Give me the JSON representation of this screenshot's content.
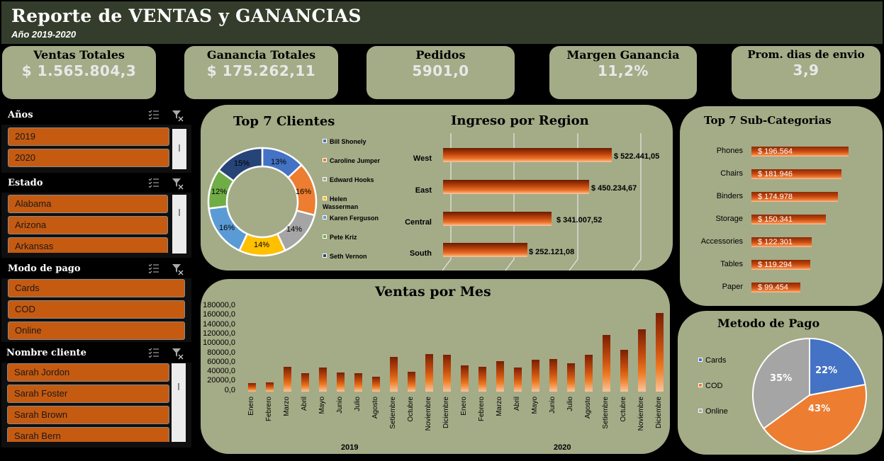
{
  "header": {
    "title": "Reporte de VENTAS y GANANCIAS",
    "subtitle": "Año 2019-2020"
  },
  "kpis": [
    {
      "label": "Ventas Totales",
      "value": "$ 1.565.804,3"
    },
    {
      "label": "Ganancia Totales",
      "value": "$ 175.262,11"
    },
    {
      "label": "Pedidos",
      "value": "5901,0"
    },
    {
      "label": "Margen Ganancia",
      "value": "11,2%"
    },
    {
      "label": "Prom. dias de envio",
      "value": "3,9"
    }
  ],
  "slicers": [
    {
      "title": "Años",
      "items": [
        "2019",
        "2020"
      ]
    },
    {
      "title": "Estado",
      "items": [
        "Alabama",
        "Arizona",
        "Arkansas"
      ]
    },
    {
      "title": "Modo de pago",
      "items": [
        "Cards",
        "COD",
        "Online"
      ]
    },
    {
      "title": "Nombre cliente",
      "items": [
        "Sarah Jordon",
        "Sarah Foster",
        "Sarah Brown",
        "Sarah Bern"
      ]
    }
  ],
  "colors": {
    "background": "#000000",
    "header": "#343d2b",
    "panel": "#a4ab87",
    "slicer_item": "#c55a11",
    "blue": "#4472c4",
    "orange": "#ed7d31",
    "gray": "#a5a5a5",
    "yellow": "#ffc000",
    "light_blue": "#5b9bd5",
    "green": "#70ad47",
    "dark_blue": "#264478"
  },
  "chart_data": [
    {
      "type": "pie",
      "subtype": "donut",
      "title": "Top 7 Clientes",
      "categories": [
        "Bill Shonely",
        "Caroline Jumper",
        "Edward Hooks",
        "Helen Wasserman",
        "Karen Ferguson",
        "Pete Kriz",
        "Seth Vernon"
      ],
      "values": [
        13,
        16,
        14,
        14,
        16,
        12,
        15
      ],
      "labels": [
        "13%",
        "16%",
        "14%",
        "14%",
        "16%",
        "12%",
        "15%"
      ],
      "legend_position": "right"
    },
    {
      "type": "bar",
      "orientation": "horizontal",
      "title": "Ingreso por Region",
      "categories": [
        "West",
        "East",
        "Central",
        "South"
      ],
      "values": [
        522441.05,
        450234.67,
        341007.52,
        252121.08
      ],
      "labels": [
        "$ 522.441,05",
        "$ 450.234,67",
        "$ 341.007,52",
        "$ 252.121,08"
      ],
      "grid": true
    },
    {
      "type": "bar",
      "orientation": "horizontal",
      "title": "Top 7 Sub-Categorias",
      "categories": [
        "Phones",
        "Chairs",
        "Binders",
        "Storage",
        "Accessories",
        "Tables",
        "Paper"
      ],
      "values": [
        196564,
        181946,
        174978,
        150341,
        122301,
        119294,
        99454
      ],
      "labels": [
        "$ 196.564",
        "$ 181.946",
        "$ 174.978",
        "$ 150.341",
        "$ 122.301",
        "$ 119.294",
        "$ 99.454"
      ]
    },
    {
      "type": "bar",
      "title": "Ventas por Mes",
      "groups": [
        "2019",
        "2020"
      ],
      "categories": [
        "Enero",
        "Febrero",
        "Marzo",
        "Abril",
        "Mayo",
        "Junio",
        "Julio",
        "Agosto",
        "Setiembre",
        "Octubre",
        "Noviembre",
        "Diciembre",
        "Enero",
        "Febrero",
        "Marzo",
        "Abril",
        "Mayo",
        "Junio",
        "Julio",
        "Agosto",
        "Setiembre",
        "Octubre",
        "Noviembre",
        "Diciembre"
      ],
      "values": [
        18000,
        19500,
        52500,
        39000,
        51000,
        40500,
        39000,
        31500,
        73500,
        42000,
        79500,
        78000,
        55500,
        52500,
        64500,
        51000,
        67500,
        69000,
        60000,
        78000,
        120000,
        88500,
        132000,
        166500
      ],
      "yticks": [
        "180000,0",
        "160000,0",
        "140000,0",
        "120000,0",
        "100000,0",
        "80000,0",
        "60000,0",
        "40000,0",
        "20000,0",
        "0,0"
      ],
      "ylim": [
        0,
        180000
      ],
      "grid": false
    },
    {
      "type": "pie",
      "title": "Metodo de Pago",
      "categories": [
        "Cards",
        "COD",
        "Online"
      ],
      "values": [
        22,
        43,
        35
      ],
      "labels": [
        "22%",
        "43%",
        "35%"
      ],
      "legend_position": "left"
    }
  ]
}
